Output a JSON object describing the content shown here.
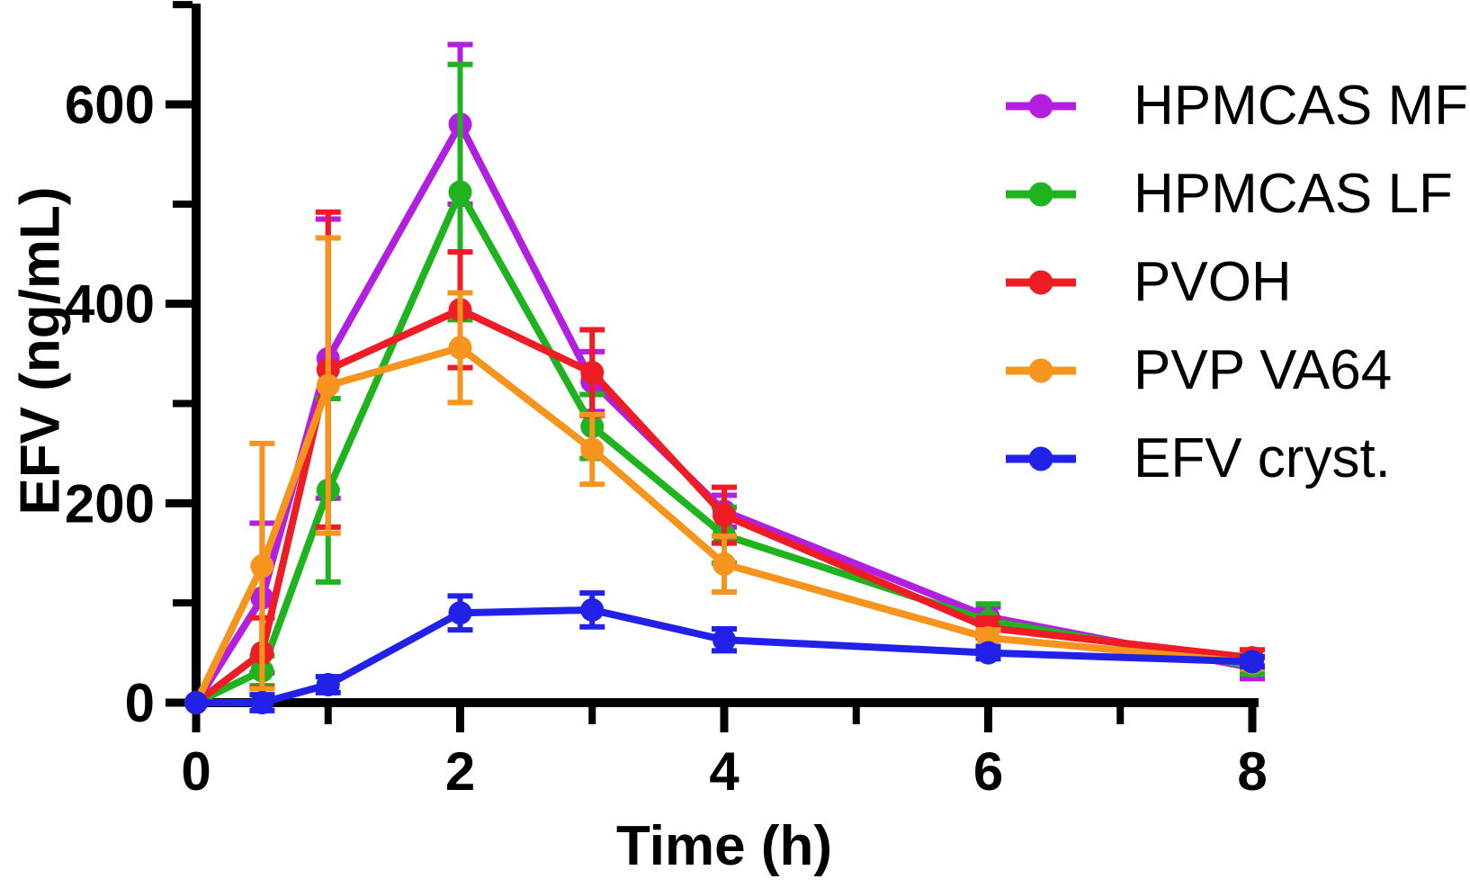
{
  "figure": {
    "background": "#ffffff",
    "text_color": "#000000",
    "axis_color": "#000000"
  },
  "chart_data": {
    "type": "line",
    "title": "",
    "xlabel": "Time (h)",
    "ylabel": "EFV (ng/mL)",
    "x": [
      0,
      0.5,
      1,
      2,
      3,
      4,
      6,
      8
    ],
    "xlim": [
      0,
      8
    ],
    "ylim": [
      0,
      700
    ],
    "x_major_ticks": [
      0,
      2,
      4,
      6,
      8
    ],
    "x_minor_ticks": [
      1,
      3,
      5,
      7
    ],
    "y_major_ticks": [
      0,
      200,
      400,
      600
    ],
    "y_minor_ticks": [
      100,
      300,
      500,
      700
    ],
    "grid": false,
    "error_bars": true,
    "legend_position": "upper right",
    "series": [
      {
        "name": "HPMCAS MF",
        "color": "#B21FE0",
        "values": [
          0,
          105,
          345,
          580,
          322,
          192,
          86,
          35
        ],
        "errors": [
          0,
          75,
          140,
          80,
          30,
          16,
          10,
          11
        ]
      },
      {
        "name": "HPMCAS LF",
        "color": "#1FB41F",
        "values": [
          0,
          32,
          213,
          512,
          277,
          168,
          82,
          37
        ],
        "errors": [
          0,
          15,
          92,
          128,
          32,
          28,
          17,
          8
        ]
      },
      {
        "name": "PVOH",
        "color": "#EE1C24",
        "values": [
          0,
          50,
          334,
          394,
          331,
          188,
          75,
          45
        ],
        "errors": [
          0,
          35,
          158,
          58,
          43,
          28,
          10,
          8
        ]
      },
      {
        "name": "PVP VA64",
        "color": "#F7941D",
        "values": [
          0,
          137,
          318,
          356,
          254,
          139,
          65,
          40
        ],
        "errors": [
          0,
          123,
          148,
          55,
          35,
          28,
          8,
          6
        ]
      },
      {
        "name": "EFV cryst.",
        "color": "#2121E8",
        "values": [
          0,
          0,
          18,
          90,
          93,
          63,
          50,
          41
        ],
        "errors": [
          0,
          8,
          8,
          17,
          17,
          11,
          6,
          5
        ]
      }
    ]
  }
}
